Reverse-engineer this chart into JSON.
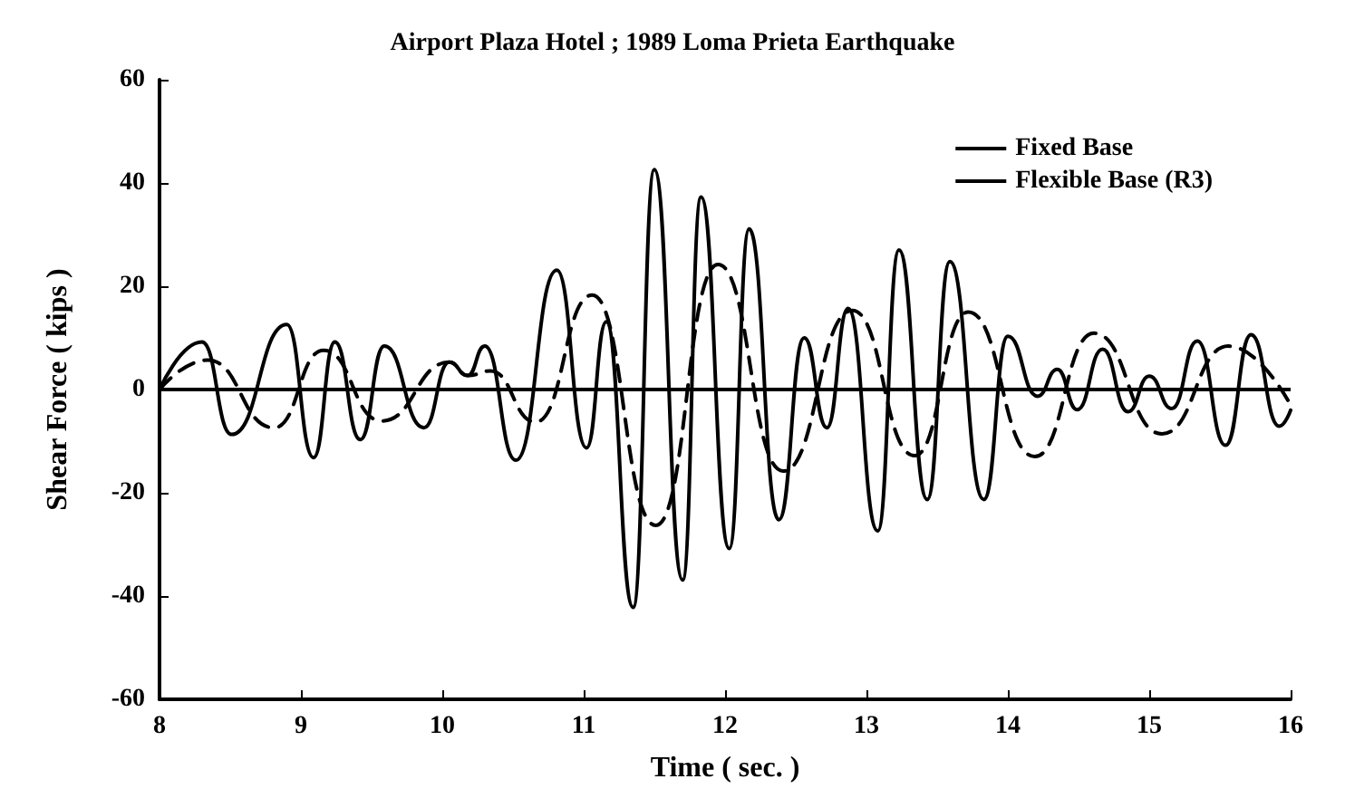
{
  "chart_data": {
    "type": "line",
    "title": "Airport Plaza Hotel ; 1989 Loma Prieta Earthquake",
    "xlabel": "Time ( sec. )",
    "ylabel": "Shear Force ( kips )",
    "xlim": [
      8,
      16
    ],
    "xticks": [
      8,
      9,
      10,
      11,
      12,
      13,
      14,
      15,
      16
    ],
    "ylim": [
      -60,
      60
    ],
    "yticks": [
      -60,
      -40,
      -20,
      0,
      20,
      40,
      60
    ],
    "grid": false,
    "legend": "top right",
    "marker": "none",
    "ref_lines": [
      {
        "axis": "y",
        "value": 0,
        "color": "#000000",
        "line_style": "solid"
      }
    ],
    "series": [
      {
        "name": "Fixed Base",
        "color": "#000000",
        "line_style": "solid",
        "x": [
          8,
          8.3,
          8.51,
          8.9,
          9.09,
          9.24,
          9.42,
          9.59,
          9.87,
          10.05,
          10.18,
          10.3,
          10.52,
          10.81,
          11.02,
          11.16,
          11.35,
          11.5,
          11.7,
          11.83,
          12.03,
          12.17,
          12.38,
          12.56,
          12.72,
          12.87,
          13.08,
          13.23,
          13.43,
          13.59,
          13.83,
          14,
          14.21,
          14.35,
          14.49,
          14.67,
          14.85,
          15,
          15.16,
          15.34,
          15.54,
          15.72,
          15.92,
          16
        ],
        "values": [
          0,
          9.2,
          -8.7,
          12.6,
          -13.2,
          9.2,
          -9.7,
          8.4,
          -7.4,
          5.3,
          2.7,
          8.4,
          -13.7,
          23.1,
          -11.3,
          13.1,
          -42.2,
          42.6,
          -36.9,
          37.3,
          -30.8,
          31.1,
          -25.2,
          10,
          -7.4,
          15.7,
          -27.4,
          27,
          -21.3,
          24.8,
          -21.3,
          10.3,
          -1.3,
          3.9,
          -3.9,
          7.8,
          -4.3,
          2.6,
          -3.7,
          9.4,
          -10.8,
          10.6,
          -7.1,
          -4
        ]
      },
      {
        "name": "Flexible Base (R3)",
        "color": "#000000",
        "line_style": "dashed",
        "x": [
          8,
          8.34,
          8.81,
          9.16,
          9.57,
          10.05,
          10.18,
          10.34,
          10.66,
          11.06,
          11.51,
          11.95,
          12.41,
          12.9,
          13.34,
          13.72,
          14.19,
          14.61,
          15.09,
          15.56,
          16
        ],
        "values": [
          0,
          5.7,
          -7.4,
          7.6,
          -6.1,
          5.3,
          2.7,
          3.6,
          -6.3,
          18.3,
          -26.3,
          24.2,
          -15.8,
          15.3,
          -12.8,
          15,
          -13,
          10.9,
          -8.6,
          8.4,
          -3
        ]
      }
    ]
  }
}
